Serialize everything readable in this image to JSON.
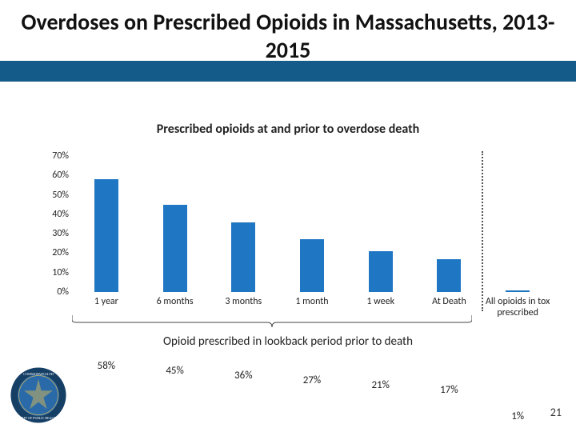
{
  "title": {
    "text": "Overdoses on Prescribed Opioids in Massachusetts, 2013-2015",
    "fontsize": 28
  },
  "subtitle": {
    "text": "Prescribed opioids at and prior to overdose death",
    "fontsize": 16
  },
  "chart": {
    "type": "bar",
    "ylim": [
      0,
      70
    ],
    "ytick_step": 10,
    "ytick_suffix": "%",
    "bar_color": "#1f77c4",
    "label_fontsize": 13,
    "axis_fontsize": 12,
    "separator_after_index": 5,
    "categories": [
      "1 year",
      "6 months",
      "3 months",
      "1 month",
      "1 week",
      "At Death",
      "All opioids in tox prescribed"
    ],
    "values": [
      58,
      45,
      36,
      27,
      21,
      17,
      1
    ],
    "value_suffix": "%"
  },
  "caption": {
    "text": "Opioid prescribed in lookback period prior to death"
  },
  "page_number": "21",
  "seal": {
    "outer_ring_color": "#163f66",
    "inner_color": "#2a6aa8",
    "accent_color": "#c9b25e"
  }
}
